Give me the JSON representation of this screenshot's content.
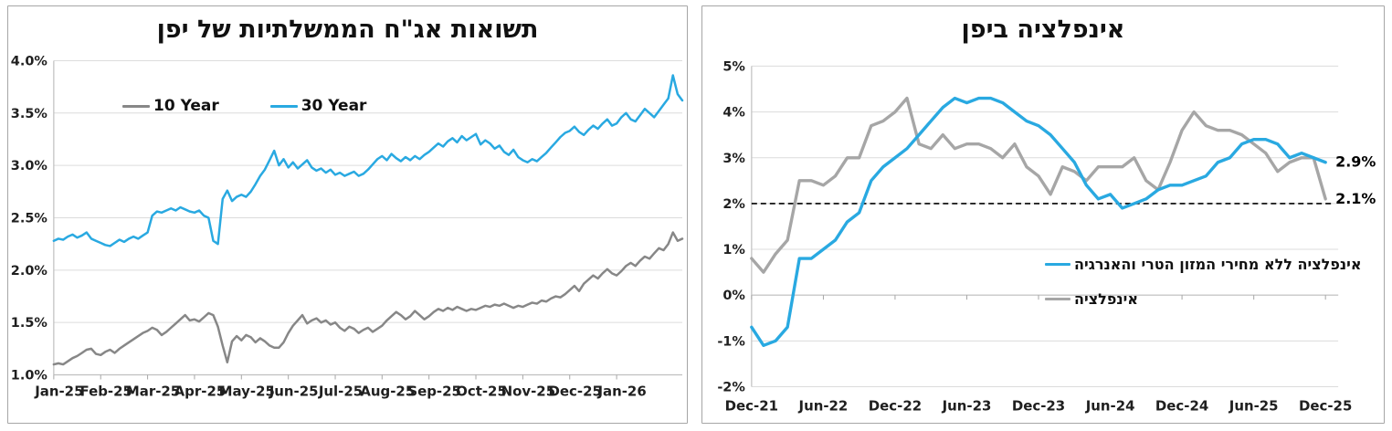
{
  "charts": [
    {
      "title": "תשואות אג\"ח הממשלתיות של יפן",
      "type": "line",
      "y_min": 1.0,
      "y_max": 4.0,
      "y_ticks": [
        "4.0%",
        "3.5%",
        "3.0%",
        "2.5%",
        "2.0%",
        "1.5%",
        "1.0%"
      ],
      "x_labels": [
        "Jan-25",
        "Feb-25",
        "Mar-25",
        "Apr-25",
        "May-25",
        "Jun-25",
        "Jul-25",
        "Aug-25",
        "Sep-25",
        "Oct-25",
        "Nov-25",
        "Dec-25",
        "Jan-26"
      ],
      "grid": true,
      "legend_position": "top-left-inside",
      "series": [
        {
          "name": "10 Year",
          "color": "#878787",
          "values": [
            1.1,
            1.11,
            1.1,
            1.13,
            1.16,
            1.18,
            1.21,
            1.24,
            1.25,
            1.2,
            1.19,
            1.22,
            1.24,
            1.21,
            1.25,
            1.28,
            1.31,
            1.34,
            1.37,
            1.4,
            1.42,
            1.45,
            1.43,
            1.38,
            1.41,
            1.45,
            1.49,
            1.53,
            1.57,
            1.52,
            1.53,
            1.51,
            1.55,
            1.59,
            1.57,
            1.46,
            1.28,
            1.12,
            1.32,
            1.37,
            1.33,
            1.38,
            1.36,
            1.31,
            1.35,
            1.32,
            1.28,
            1.26,
            1.26,
            1.31,
            1.4,
            1.47,
            1.52,
            1.57,
            1.49,
            1.52,
            1.54,
            1.5,
            1.52,
            1.48,
            1.5,
            1.45,
            1.42,
            1.46,
            1.44,
            1.4,
            1.43,
            1.45,
            1.41,
            1.44,
            1.47,
            1.52,
            1.56,
            1.6,
            1.57,
            1.53,
            1.56,
            1.61,
            1.57,
            1.53,
            1.56,
            1.6,
            1.63,
            1.61,
            1.64,
            1.62,
            1.65,
            1.63,
            1.61,
            1.63,
            1.62,
            1.64,
            1.66,
            1.65,
            1.67,
            1.66,
            1.68,
            1.66,
            1.64,
            1.66,
            1.65,
            1.67,
            1.69,
            1.68,
            1.71,
            1.7,
            1.73,
            1.75,
            1.74,
            1.77,
            1.81,
            1.85,
            1.8,
            1.87,
            1.91,
            1.95,
            1.92,
            1.97,
            2.01,
            1.97,
            1.95,
            1.99,
            2.04,
            2.07,
            2.04,
            2.09,
            2.13,
            2.11,
            2.16,
            2.21,
            2.19,
            2.25,
            2.36,
            2.28,
            2.3
          ]
        },
        {
          "name": "30 Year",
          "color": "#29a9e1",
          "values": [
            2.28,
            2.3,
            2.29,
            2.32,
            2.34,
            2.31,
            2.33,
            2.36,
            2.3,
            2.28,
            2.26,
            2.24,
            2.23,
            2.26,
            2.29,
            2.27,
            2.3,
            2.32,
            2.3,
            2.33,
            2.36,
            2.52,
            2.56,
            2.55,
            2.57,
            2.59,
            2.57,
            2.6,
            2.58,
            2.56,
            2.55,
            2.57,
            2.52,
            2.5,
            2.28,
            2.25,
            2.68,
            2.76,
            2.66,
            2.7,
            2.72,
            2.7,
            2.75,
            2.82,
            2.9,
            2.96,
            3.05,
            3.14,
            3.0,
            3.06,
            2.98,
            3.03,
            2.97,
            3.01,
            3.05,
            2.98,
            2.95,
            2.97,
            2.93,
            2.96,
            2.91,
            2.93,
            2.9,
            2.92,
            2.94,
            2.9,
            2.92,
            2.96,
            3.01,
            3.06,
            3.09,
            3.05,
            3.11,
            3.07,
            3.04,
            3.08,
            3.05,
            3.09,
            3.06,
            3.1,
            3.13,
            3.17,
            3.21,
            3.18,
            3.23,
            3.26,
            3.22,
            3.28,
            3.24,
            3.27,
            3.3,
            3.2,
            3.24,
            3.21,
            3.16,
            3.19,
            3.13,
            3.1,
            3.15,
            3.08,
            3.05,
            3.03,
            3.06,
            3.04,
            3.08,
            3.12,
            3.17,
            3.22,
            3.27,
            3.31,
            3.33,
            3.37,
            3.32,
            3.29,
            3.34,
            3.38,
            3.35,
            3.4,
            3.44,
            3.38,
            3.4,
            3.46,
            3.5,
            3.44,
            3.42,
            3.48,
            3.54,
            3.5,
            3.46,
            3.52,
            3.58,
            3.64,
            3.86,
            3.68,
            3.62
          ]
        }
      ]
    },
    {
      "title": "אינפלציה ביפן",
      "type": "line",
      "y_min": -2,
      "y_max": 5,
      "y_ticks": [
        "5%",
        "4%",
        "3%",
        "2%",
        "1%",
        "0%",
        "-1%",
        "-2%"
      ],
      "x_labels": [
        "Dec-21",
        "Jun-22",
        "Dec-22",
        "Jun-23",
        "Dec-23",
        "Jun-24",
        "Dec-24",
        "Jun-25",
        "Dec-25"
      ],
      "grid": true,
      "legend_position": "middle-right-inside",
      "reference_line": {
        "value": 2,
        "style": "dashed",
        "color": "#000000"
      },
      "series": [
        {
          "name": "אינפלציה ללא מחירי המזון הטרי והאנרגיה",
          "color": "#29a9e1",
          "end_label": "2.9%",
          "values": [
            -0.7,
            -1.1,
            -1.0,
            -0.7,
            0.8,
            0.8,
            1.0,
            1.2,
            1.6,
            1.8,
            2.5,
            2.8,
            3.0,
            3.2,
            3.5,
            3.8,
            4.1,
            4.3,
            4.2,
            4.3,
            4.3,
            4.2,
            4.0,
            3.8,
            3.7,
            3.5,
            3.2,
            2.9,
            2.4,
            2.1,
            2.2,
            1.9,
            2.0,
            2.1,
            2.3,
            2.4,
            2.4,
            2.5,
            2.6,
            2.9,
            3.0,
            3.3,
            3.4,
            3.4,
            3.3,
            3.0,
            3.1,
            3.0,
            2.9
          ]
        },
        {
          "name": "אינפלציה",
          "color": "#a6a6a6",
          "end_label": "2.1%",
          "values": [
            0.8,
            0.5,
            0.9,
            1.2,
            2.5,
            2.5,
            2.4,
            2.6,
            3.0,
            3.0,
            3.7,
            3.8,
            4.0,
            4.3,
            3.3,
            3.2,
            3.5,
            3.2,
            3.3,
            3.3,
            3.2,
            3.0,
            3.3,
            2.8,
            2.6,
            2.2,
            2.8,
            2.7,
            2.5,
            2.8,
            2.8,
            2.8,
            3.0,
            2.5,
            2.3,
            2.9,
            3.6,
            4.0,
            3.7,
            3.6,
            3.6,
            3.5,
            3.3,
            3.1,
            2.7,
            2.9,
            3.0,
            3.0,
            2.1
          ]
        }
      ]
    }
  ]
}
